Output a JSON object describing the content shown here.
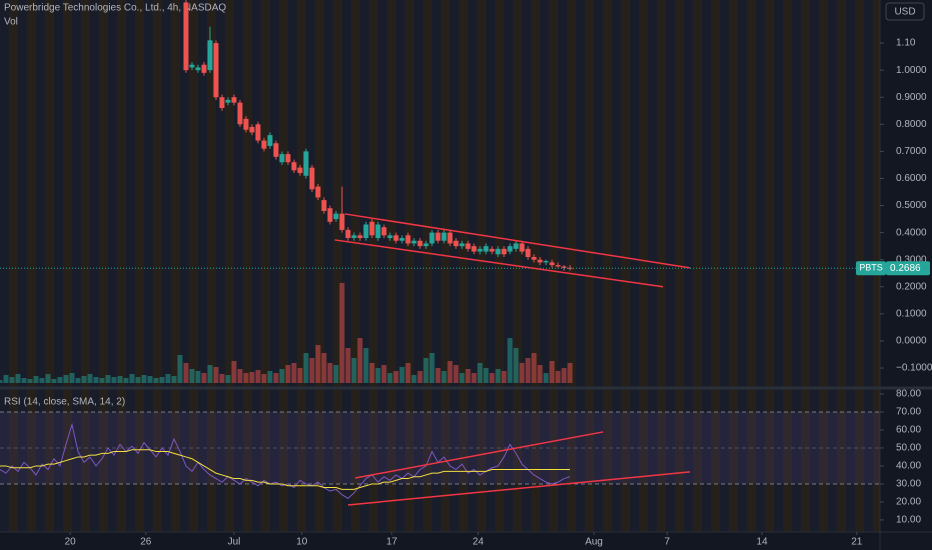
{
  "chart_data": [
    {
      "type": "candlestick",
      "title": "Powerbridge Technologies Co., Ltd., 4h, NASDAQ",
      "volume_label": "Vol",
      "currency": "USD",
      "up_color": "#26a69a",
      "down_color": "#ef5350",
      "x": [
        0,
        1,
        2,
        3,
        4,
        5,
        6,
        7,
        8,
        9,
        10,
        11,
        12,
        13,
        14,
        15,
        16,
        17,
        18,
        19,
        20,
        21,
        22,
        23,
        24,
        25,
        26,
        27,
        28,
        29,
        30,
        31,
        32,
        33,
        34,
        35,
        36,
        37,
        38,
        39,
        40,
        41,
        42,
        43,
        44,
        45,
        46,
        47,
        48,
        49,
        50,
        51,
        52,
        53,
        54,
        55,
        56,
        57,
        58,
        59,
        60,
        61,
        62,
        63,
        64,
        65,
        66,
        67,
        68,
        69,
        70,
        71,
        72,
        73,
        74,
        75,
        76,
        77,
        78,
        79,
        80,
        81,
        82,
        83,
        84,
        85,
        86,
        87,
        88,
        89,
        90,
        91,
        92,
        93,
        94,
        95
      ],
      "open": [
        null,
        null,
        null,
        null,
        null,
        null,
        null,
        null,
        null,
        null,
        null,
        null,
        null,
        null,
        null,
        null,
        null,
        null,
        null,
        null,
        null,
        null,
        null,
        null,
        null,
        null,
        null,
        null,
        null,
        null,
        null,
        1.25,
        1.01,
        1.0,
        1.02,
        1.0,
        1.1,
        0.9,
        0.88,
        0.9,
        0.88,
        0.82,
        0.79,
        0.8,
        0.74,
        0.72,
        0.73,
        0.66,
        0.69,
        0.66,
        0.64,
        0.61,
        0.64,
        0.57,
        0.52,
        0.49,
        0.45,
        0.47,
        0.41,
        0.38,
        0.39,
        0.38,
        0.44,
        0.38,
        0.42,
        0.38,
        0.39,
        0.37,
        0.39,
        0.36,
        0.37,
        0.35,
        0.36,
        0.4,
        0.37,
        0.4,
        0.37,
        0.35,
        0.36,
        0.35,
        0.33,
        0.33,
        0.34,
        0.32,
        0.34,
        0.33,
        0.34,
        0.36,
        0.34,
        0.31,
        0.3,
        0.29,
        0.29,
        0.28,
        0.275,
        0.27
      ],
      "high": [
        null,
        null,
        null,
        null,
        null,
        null,
        null,
        null,
        null,
        null,
        null,
        null,
        null,
        null,
        null,
        null,
        null,
        null,
        null,
        null,
        null,
        null,
        null,
        null,
        null,
        null,
        null,
        null,
        null,
        null,
        null,
        1.26,
        1.03,
        1.02,
        1.03,
        1.16,
        1.11,
        0.91,
        0.9,
        0.91,
        0.89,
        0.83,
        0.8,
        0.81,
        0.75,
        0.77,
        0.74,
        0.7,
        0.7,
        0.67,
        0.65,
        0.71,
        0.65,
        0.58,
        0.53,
        0.5,
        0.48,
        0.57,
        0.42,
        0.4,
        0.4,
        0.44,
        0.45,
        0.44,
        0.43,
        0.4,
        0.4,
        0.39,
        0.4,
        0.38,
        0.38,
        0.37,
        0.41,
        0.41,
        0.41,
        0.41,
        0.38,
        0.37,
        0.37,
        0.36,
        0.35,
        0.36,
        0.35,
        0.35,
        0.35,
        0.36,
        0.37,
        0.37,
        0.35,
        0.32,
        0.31,
        0.3,
        0.3,
        0.29,
        0.28,
        0.28
      ],
      "low": [
        null,
        null,
        null,
        null,
        null,
        null,
        null,
        null,
        null,
        null,
        null,
        null,
        null,
        null,
        null,
        null,
        null,
        null,
        null,
        null,
        null,
        null,
        null,
        null,
        null,
        null,
        null,
        null,
        null,
        null,
        null,
        0.99,
        1.0,
        0.99,
        0.98,
        0.99,
        0.89,
        0.85,
        0.87,
        0.87,
        0.79,
        0.77,
        0.76,
        0.73,
        0.7,
        0.71,
        0.67,
        0.65,
        0.65,
        0.62,
        0.61,
        0.6,
        0.55,
        0.52,
        0.47,
        0.43,
        0.44,
        0.4,
        0.37,
        0.37,
        0.37,
        0.37,
        0.38,
        0.37,
        0.38,
        0.37,
        0.36,
        0.36,
        0.35,
        0.35,
        0.34,
        0.34,
        0.35,
        0.36,
        0.36,
        0.35,
        0.34,
        0.34,
        0.33,
        0.32,
        0.32,
        0.32,
        0.32,
        0.31,
        0.31,
        0.32,
        0.33,
        0.32,
        0.3,
        0.29,
        0.28,
        0.28,
        0.27,
        0.27,
        0.26,
        0.26
      ],
      "close": [
        null,
        null,
        null,
        null,
        null,
        null,
        null,
        null,
        null,
        null,
        null,
        null,
        null,
        null,
        null,
        null,
        null,
        null,
        null,
        null,
        null,
        null,
        null,
        null,
        null,
        null,
        null,
        null,
        null,
        null,
        null,
        1.0,
        1.02,
        1.01,
        0.99,
        1.11,
        0.9,
        0.86,
        0.89,
        0.88,
        0.8,
        0.78,
        0.77,
        0.74,
        0.71,
        0.76,
        0.68,
        0.69,
        0.66,
        0.63,
        0.62,
        0.7,
        0.56,
        0.53,
        0.48,
        0.44,
        0.47,
        0.41,
        0.38,
        0.39,
        0.38,
        0.43,
        0.39,
        0.43,
        0.39,
        0.39,
        0.37,
        0.38,
        0.36,
        0.37,
        0.35,
        0.36,
        0.4,
        0.37,
        0.4,
        0.36,
        0.35,
        0.36,
        0.34,
        0.33,
        0.34,
        0.35,
        0.33,
        0.34,
        0.32,
        0.35,
        0.36,
        0.33,
        0.31,
        0.3,
        0.29,
        0.295,
        0.28,
        0.275,
        0.27,
        0.2686
      ],
      "volume": [
        3,
        8,
        6,
        9,
        5,
        4,
        7,
        5,
        9,
        4,
        6,
        8,
        10,
        5,
        7,
        9,
        6,
        5,
        8,
        6,
        7,
        5,
        9,
        6,
        8,
        7,
        5,
        6,
        9,
        7,
        28,
        20,
        14,
        12,
        10,
        18,
        16,
        9,
        8,
        22,
        14,
        10,
        11,
        13,
        9,
        12,
        10,
        14,
        18,
        20,
        15,
        30,
        25,
        38,
        30,
        20,
        18,
        100,
        35,
        25,
        45,
        35,
        20,
        15,
        18,
        10,
        12,
        16,
        20,
        8,
        12,
        25,
        30,
        15,
        12,
        22,
        18,
        10,
        14,
        10,
        20,
        15,
        10,
        14,
        12,
        45,
        35,
        20,
        25,
        30,
        18,
        10,
        22,
        12,
        15,
        20
      ],
      "xlim": [
        0,
        146.67
      ],
      "ylim": [
        1.259,
        -0.1627
      ],
      "yticks": [
        {
          "value": 1.1,
          "label": "1.10"
        },
        {
          "value": 1.0,
          "label": "1.0000"
        },
        {
          "value": 0.9,
          "label": "0.9000"
        },
        {
          "value": 0.8,
          "label": "0.8000"
        },
        {
          "value": 0.7,
          "label": "0.7000"
        },
        {
          "value": 0.6,
          "label": "0.6000"
        },
        {
          "value": 0.5,
          "label": "0.5000"
        },
        {
          "value": 0.4,
          "label": "0.4000"
        },
        {
          "value": 0.3,
          "label": "0.3000"
        },
        {
          "value": 0.2,
          "label": "0.2000"
        },
        {
          "value": 0.1,
          "label": "0.1000"
        },
        {
          "value": 0.0,
          "label": "0.0000"
        },
        {
          "value": -0.1,
          "label": "−0.1000"
        }
      ],
      "last_price": {
        "symbol": "PBTS",
        "value": 0.2686
      },
      "trendline_color": "#f23645",
      "trendlines": [
        [
          [
            57.5,
            0.469
          ],
          [
            115,
            0.27
          ]
        ],
        [
          [
            55.8,
            0.373
          ],
          [
            110.5,
            0.2
          ]
        ]
      ]
    },
    {
      "type": "line",
      "title": "RSI (14, close, SMA, 14, 2)",
      "x": [
        0,
        1,
        2,
        3,
        4,
        5,
        6,
        7,
        8,
        9,
        10,
        11,
        12,
        13,
        14,
        15,
        16,
        17,
        18,
        19,
        20,
        21,
        22,
        23,
        24,
        25,
        26,
        27,
        28,
        29,
        30,
        31,
        32,
        33,
        34,
        35,
        36,
        37,
        38,
        39,
        40,
        41,
        42,
        43,
        44,
        45,
        46,
        47,
        48,
        49,
        50,
        51,
        52,
        53,
        54,
        55,
        56,
        57,
        58,
        59,
        60,
        61,
        62,
        63,
        64,
        65,
        66,
        67,
        68,
        69,
        70,
        71,
        72,
        73,
        74,
        75,
        76,
        77,
        78,
        79,
        80,
        81,
        82,
        83,
        84,
        85,
        86,
        87,
        88,
        89,
        90,
        91,
        92,
        93,
        94,
        95
      ],
      "series": [
        {
          "color": "#7e57c2",
          "values": [
            38,
            36,
            40,
            37,
            42,
            39,
            35,
            41,
            38,
            44,
            40,
            52,
            63,
            48,
            42,
            45,
            40,
            44,
            50,
            46,
            52,
            48,
            51,
            47,
            53,
            49,
            45,
            50,
            46,
            55,
            48,
            40,
            37,
            42,
            38,
            35,
            33,
            31,
            34,
            32,
            30,
            33,
            31,
            29,
            32,
            30,
            31,
            29,
            30,
            28,
            32,
            30,
            29,
            31,
            28,
            26,
            27,
            24,
            22,
            25,
            29,
            33,
            35,
            31,
            34,
            32,
            35,
            33,
            36,
            34,
            38,
            40,
            48,
            42,
            45,
            40,
            38,
            41,
            36,
            38,
            35,
            37,
            39,
            40,
            45,
            52,
            47,
            41,
            38,
            35,
            33,
            31,
            30,
            31,
            33,
            34
          ]
        },
        {
          "color": "#f5e042",
          "values": [
            40,
            40,
            39,
            39,
            39,
            39,
            40,
            40,
            41,
            41,
            42,
            43,
            44,
            45,
            45,
            46,
            46,
            47,
            47,
            48,
            48,
            48,
            49,
            49,
            49,
            49,
            48,
            48,
            48,
            47,
            46,
            45,
            44,
            42,
            40,
            38,
            36,
            35,
            34,
            33,
            33,
            32,
            32,
            31,
            31,
            30,
            30,
            30,
            29,
            29,
            29,
            29,
            29,
            29,
            28,
            28,
            28,
            27,
            27,
            27,
            28,
            29,
            30,
            30,
            31,
            31,
            32,
            33,
            33,
            34,
            34,
            35,
            36,
            36,
            37,
            37,
            37,
            37,
            37,
            37,
            37,
            37,
            38,
            38,
            38,
            38,
            38,
            38,
            38,
            38,
            38,
            38,
            38,
            38,
            38,
            38
          ]
        }
      ],
      "bands": [
        70,
        30
      ],
      "middle": 50,
      "xlim": [
        0,
        146.67
      ],
      "ylim": [
        81.1,
        4.4
      ],
      "yticks": [
        {
          "value": 80,
          "label": "80.00"
        },
        {
          "value": 70,
          "label": "70.00"
        },
        {
          "value": 60,
          "label": "60.00"
        },
        {
          "value": 50,
          "label": "50.00"
        },
        {
          "value": 40,
          "label": "40.00"
        },
        {
          "value": 30,
          "label": "30.00"
        },
        {
          "value": 20,
          "label": "20.00"
        },
        {
          "value": 10,
          "label": "10.00"
        }
      ],
      "xticks": [
        {
          "value": 11.7,
          "label": "20"
        },
        {
          "value": 24.3,
          "label": "26"
        },
        {
          "value": 39,
          "label": "Jul"
        },
        {
          "value": 50.3,
          "label": "10"
        },
        {
          "value": 65.3,
          "label": "17"
        },
        {
          "value": 79.7,
          "label": "24"
        },
        {
          "value": 99,
          "label": "Aug"
        },
        {
          "value": 111.2,
          "label": "7"
        },
        {
          "value": 127,
          "label": "14"
        },
        {
          "value": 142.8,
          "label": "21"
        }
      ],
      "trendline_color": "#f23645",
      "trendlines": [
        [
          [
            59.2,
            33.3
          ],
          [
            100.5,
            58.9
          ]
        ],
        [
          [
            58,
            18.3
          ],
          [
            115,
            36.7
          ]
        ]
      ]
    }
  ]
}
